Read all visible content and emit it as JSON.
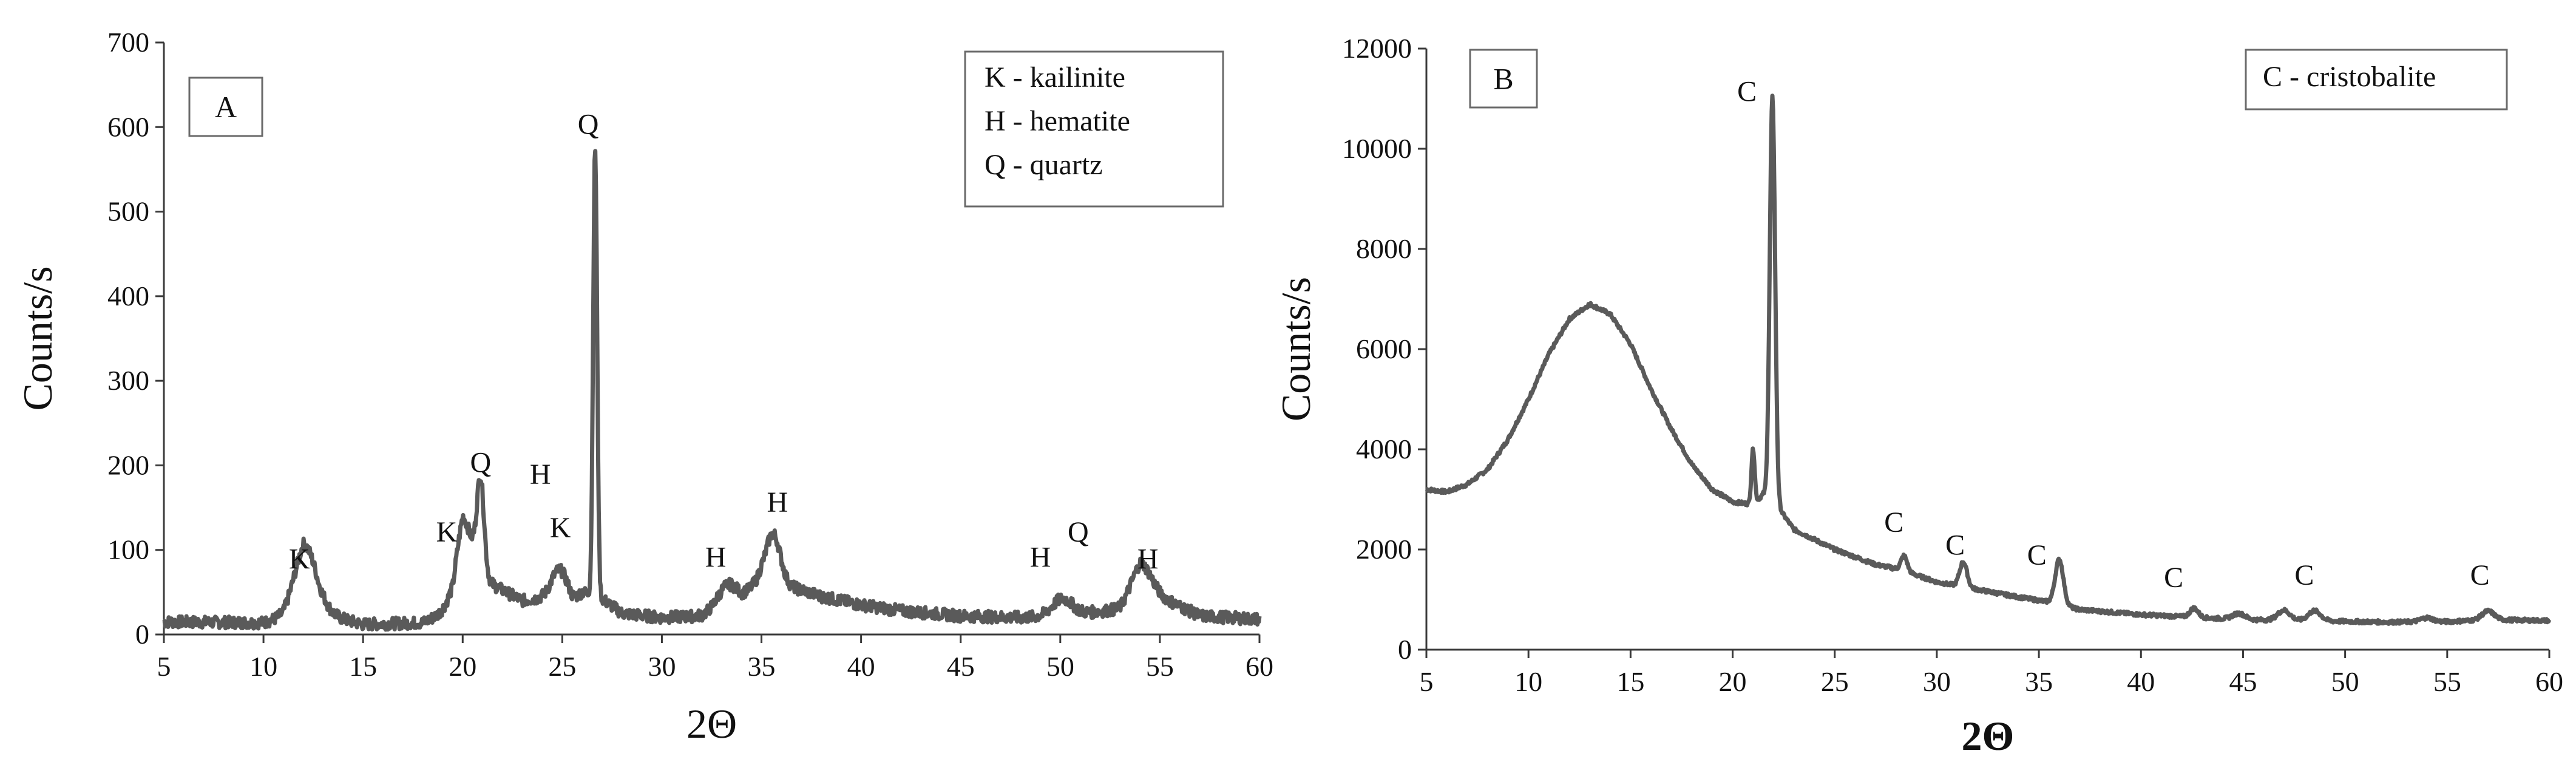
{
  "figure": {
    "colors": {
      "series": "#5a5a5a",
      "axis": "#3a3a3a",
      "frame": "#6a6a6a",
      "text": "#111111"
    }
  },
  "chart_data": [
    {
      "type": "line",
      "panel_label": "A",
      "xlabel": "2Θ",
      "ylabel": "Counts/s",
      "xlim": [
        5,
        60
      ],
      "ylim": [
        0,
        700
      ],
      "xticks": [
        5,
        10,
        15,
        20,
        25,
        30,
        35,
        40,
        45,
        50,
        55,
        60
      ],
      "yticks": [
        0,
        100,
        200,
        300,
        400,
        500,
        600,
        700
      ],
      "grid": false,
      "legend_position": "top-right",
      "legend": [
        "K - kailinite",
        "H - hematite",
        "Q - quartz"
      ],
      "series": [
        {
          "values": {
            "baseline": [
              [
                5,
                15
              ],
              [
                10,
                14
              ],
              [
                11,
                20
              ],
              [
                12,
                55
              ],
              [
                12.8,
                25
              ],
              [
                15,
                12
              ],
              [
                18,
                14
              ],
              [
                19.5,
                30
              ],
              [
                20,
                95
              ],
              [
                21,
                65
              ],
              [
                23,
                40
              ],
              [
                24.5,
                45
              ],
              [
                25.5,
                35
              ],
              [
                26,
                50
              ],
              [
                27,
                42
              ],
              [
                28,
                25
              ],
              [
                30,
                20
              ],
              [
                32,
                22
              ],
              [
                34,
                40
              ],
              [
                35,
                70
              ],
              [
                36,
                60
              ],
              [
                38,
                45
              ],
              [
                40,
                35
              ],
              [
                42,
                28
              ],
              [
                45,
                22
              ],
              [
                48,
                20
              ],
              [
                50,
                22
              ],
              [
                53,
                30
              ],
              [
                54,
                60
              ],
              [
                55,
                45
              ],
              [
                57,
                22
              ],
              [
                60,
                18
              ]
            ],
            "peaks": [
              {
                "x": 12.2,
                "y": 55,
                "w": 0.6
              },
              {
                "x": 20.0,
                "y": 45,
                "w": 0.5
              },
              {
                "x": 20.9,
                "y": 110,
                "w": 0.18
              },
              {
                "x": 24.9,
                "y": 35,
                "w": 0.4
              },
              {
                "x": 26.65,
                "y": 530,
                "w": 0.1
              },
              {
                "x": 33.3,
                "y": 25,
                "w": 0.5
              },
              {
                "x": 35.6,
                "y": 55,
                "w": 0.35
              },
              {
                "x": 50.1,
                "y": 20,
                "w": 0.5
              },
              {
                "x": 54.1,
                "y": 25,
                "w": 0.5
              }
            ],
            "noise_amplitude": 7
          }
        }
      ],
      "annotations": [
        {
          "text": "K",
          "x": 11.8,
          "y": 78
        },
        {
          "text": "K",
          "x": 19.2,
          "y": 110
        },
        {
          "text": "Q",
          "x": 20.9,
          "y": 192
        },
        {
          "text": "H",
          "x": 23.9,
          "y": 178
        },
        {
          "text": "K",
          "x": 24.9,
          "y": 115
        },
        {
          "text": "Q",
          "x": 26.3,
          "y": 592
        },
        {
          "text": "H",
          "x": 32.7,
          "y": 80
        },
        {
          "text": "H",
          "x": 35.8,
          "y": 145
        },
        {
          "text": "H",
          "x": 49.0,
          "y": 80
        },
        {
          "text": "Q",
          "x": 50.9,
          "y": 110
        },
        {
          "text": "H",
          "x": 54.4,
          "y": 78
        }
      ]
    },
    {
      "type": "line",
      "panel_label": "B",
      "xlabel": "2Θ",
      "ylabel": "Counts/s",
      "xlim": [
        5,
        60
      ],
      "ylim": [
        0,
        12000
      ],
      "xticks": [
        5,
        10,
        15,
        20,
        25,
        30,
        35,
        40,
        45,
        50,
        55,
        60
      ],
      "yticks": [
        0,
        2000,
        4000,
        6000,
        8000,
        10000,
        12000
      ],
      "grid": false,
      "legend_position": "top-right",
      "legend": [
        "C - cristobalite"
      ],
      "series": [
        {
          "values": {
            "baseline": [
              [
                5,
                3200
              ],
              [
                6,
                3150
              ],
              [
                7,
                3300
              ],
              [
                8,
                3600
              ],
              [
                9,
                4200
              ],
              [
                10,
                5000
              ],
              [
                11,
                5900
              ],
              [
                12,
                6600
              ],
              [
                13,
                6900
              ],
              [
                14,
                6700
              ],
              [
                15,
                6100
              ],
              [
                16,
                5200
              ],
              [
                17,
                4400
              ],
              [
                18,
                3700
              ],
              [
                19,
                3200
              ],
              [
                20,
                2950
              ],
              [
                21,
                2900
              ],
              [
                21.5,
                3100
              ],
              [
                22.3,
                2800
              ],
              [
                23,
                2400
              ],
              [
                25,
                2000
              ],
              [
                27,
                1700
              ],
              [
                28.2,
                1600
              ],
              [
                30,
                1350
              ],
              [
                32,
                1200
              ],
              [
                34,
                1050
              ],
              [
                35.5,
                950
              ],
              [
                37,
                800
              ],
              [
                40,
                700
              ],
              [
                42.5,
                650
              ],
              [
                45,
                600
              ],
              [
                48,
                580
              ],
              [
                52,
                550
              ],
              [
                55,
                560
              ],
              [
                57,
                600
              ],
              [
                60,
                580
              ]
            ],
            "peaks": [
              {
                "x": 21.0,
                "y": 1100,
                "w": 0.08
              },
              {
                "x": 21.95,
                "y": 8100,
                "w": 0.13
              },
              {
                "x": 28.4,
                "y": 300,
                "w": 0.15
              },
              {
                "x": 31.3,
                "y": 500,
                "w": 0.18
              },
              {
                "x": 36.0,
                "y": 900,
                "w": 0.2
              },
              {
                "x": 42.6,
                "y": 180,
                "w": 0.2
              },
              {
                "x": 44.8,
                "y": 120,
                "w": 0.3
              },
              {
                "x": 47.0,
                "y": 200,
                "w": 0.3
              },
              {
                "x": 48.5,
                "y": 200,
                "w": 0.3
              },
              {
                "x": 54.0,
                "y": 80,
                "w": 0.3
              },
              {
                "x": 57.0,
                "y": 170,
                "w": 0.3
              }
            ],
            "noise_amplitude": 35
          }
        }
      ],
      "annotations": [
        {
          "text": "C",
          "x": 20.7,
          "y": 10950
        },
        {
          "text": "C",
          "x": 27.9,
          "y": 2350
        },
        {
          "text": "C",
          "x": 30.9,
          "y": 1900
        },
        {
          "text": "C",
          "x": 34.9,
          "y": 1700
        },
        {
          "text": "C",
          "x": 41.6,
          "y": 1250
        },
        {
          "text": "C",
          "x": 48.0,
          "y": 1300
        },
        {
          "text": "C",
          "x": 56.6,
          "y": 1300
        }
      ]
    }
  ]
}
